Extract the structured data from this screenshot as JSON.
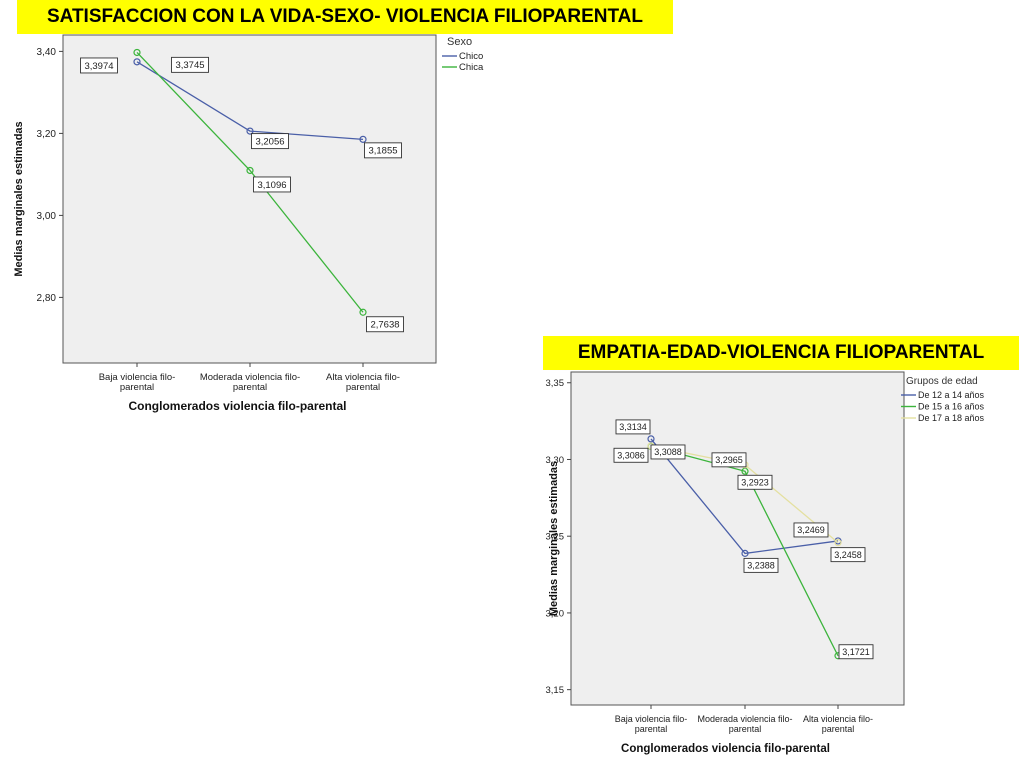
{
  "chart_data": [
    {
      "type": "line",
      "title": "SATISFACCION CON LA VIDA-SEXO- VIOLENCIA FILIOPARENTAL",
      "xlabel": "Conglomerados violencia filo-parental",
      "ylabel": "Medias marginales estimadas",
      "categories": [
        [
          "Baja violencia filo-",
          "parental"
        ],
        [
          "Moderada violencia filo-",
          "parental"
        ],
        [
          "Alta violencia filo-",
          "parental"
        ]
      ],
      "ylim": [
        2.64,
        3.44
      ],
      "yticks": [
        2.8,
        3.0,
        3.2,
        3.4
      ],
      "ytick_labels": [
        "2,80",
        "3,00",
        "3,20",
        "3,40"
      ],
      "legend_title": "Sexo",
      "legend_position": "right",
      "series": [
        {
          "name": "Chico",
          "color": "#4a5fa8",
          "values": [
            3.3745,
            3.2056,
            3.1855
          ],
          "labels": [
            "3,3745",
            "3,2056",
            "3,1855"
          ]
        },
        {
          "name": "Chica",
          "color": "#3cb43c",
          "values": [
            3.3974,
            3.1096,
            2.7638
          ],
          "labels": [
            "3,3974",
            "3,1096",
            "2,7638"
          ]
        }
      ]
    },
    {
      "type": "line",
      "title": "EMPATIA-EDAD-VIOLENCIA FILIOPARENTAL",
      "xlabel": "Conglomerados violencia filo-parental",
      "ylabel": "Medias marginales estimadas",
      "categories": [
        [
          "Baja violencia filo-",
          "parental"
        ],
        [
          "Moderada violencia filo-",
          "parental"
        ],
        [
          "Alta violencia filo-",
          "parental"
        ]
      ],
      "ylim": [
        3.14,
        3.357
      ],
      "yticks": [
        3.15,
        3.2,
        3.25,
        3.3,
        3.35
      ],
      "ytick_labels": [
        "3,15",
        "3,20",
        "3,25",
        "3,30",
        "3,35"
      ],
      "legend_title": "Grupos de edad",
      "legend_position": "right",
      "series": [
        {
          "name": "De 12 a 14 años",
          "color": "#4a5fa8",
          "values": [
            3.3134,
            3.2388,
            3.2469
          ],
          "labels": [
            "3,3134",
            "3,2388",
            "3,2469"
          ]
        },
        {
          "name": "De 15 a 16 años",
          "color": "#3cb43c",
          "values": [
            3.3086,
            3.2923,
            3.1721
          ],
          "labels": [
            "3,3086",
            "3,2923",
            "3,1721"
          ]
        },
        {
          "name": "De 17 a 18 años",
          "color": "#e4e0a0",
          "values": [
            3.3088,
            3.2965,
            3.2458
          ],
          "labels": [
            "3,3088",
            "3,2965",
            "3,2458"
          ]
        }
      ]
    }
  ]
}
